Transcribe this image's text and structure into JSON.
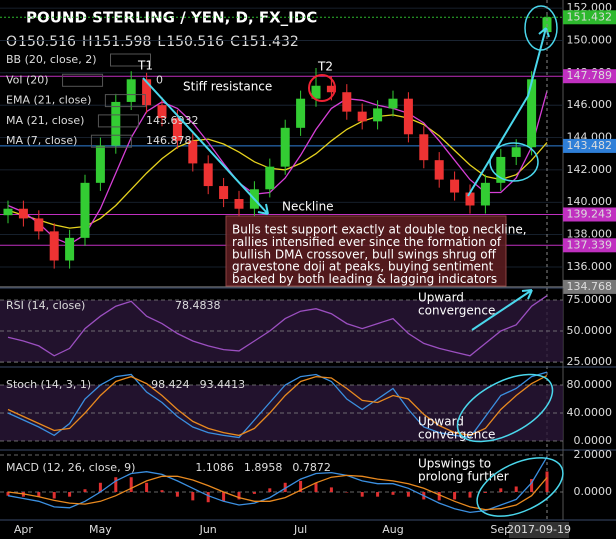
{
  "header": {
    "title": "POUND STERLING / YEN, D, FX_IDC",
    "ohlc_labels": [
      "O",
      "H",
      "L",
      "C"
    ]
  },
  "chart_data": [
    {
      "type": "candlestick",
      "categories": [
        null,
        "Apr",
        null,
        null,
        null,
        null,
        "May",
        null,
        null,
        null,
        null,
        null,
        null,
        "Jun",
        null,
        null,
        null,
        null,
        null,
        "Jul",
        null,
        null,
        null,
        null,
        null,
        "Aug",
        null,
        null,
        null,
        null,
        null,
        null,
        "Sep",
        null,
        null,
        "2017-09-19"
      ],
      "open": [
        139.2,
        139.6,
        139.0,
        138.2,
        136.4,
        137.8,
        141.2,
        143.5,
        146.2,
        147.6,
        146.0,
        145.2,
        143.8,
        142.4,
        141.0,
        140.2,
        139.6,
        140.8,
        142.2,
        144.6,
        146.4,
        147.2,
        146.8,
        145.6,
        145.0,
        145.8,
        146.4,
        144.2,
        142.6,
        141.4,
        140.6,
        139.8,
        141.2,
        142.8,
        143.4,
        150.516
      ],
      "high": [
        140.1,
        140.1,
        139.5,
        138.7,
        138.3,
        141.7,
        144.0,
        146.7,
        148.1,
        148.0,
        146.5,
        145.7,
        144.3,
        142.9,
        141.5,
        140.7,
        141.3,
        142.7,
        145.1,
        146.9,
        148.3,
        147.8,
        147.3,
        146.1,
        146.3,
        146.9,
        146.8,
        144.7,
        143.1,
        141.9,
        141.1,
        141.7,
        143.3,
        143.9,
        148.1,
        151.598
      ],
      "low": [
        138.7,
        138.5,
        137.7,
        135.9,
        135.9,
        137.3,
        140.7,
        143.0,
        145.7,
        145.5,
        144.7,
        143.3,
        141.9,
        140.5,
        139.7,
        139.1,
        139.1,
        140.3,
        141.7,
        144.1,
        145.9,
        146.3,
        145.1,
        144.5,
        144.5,
        145.3,
        143.7,
        142.1,
        140.9,
        140.1,
        139.3,
        139.3,
        140.7,
        142.3,
        142.9,
        150.516
      ],
      "close": [
        139.6,
        139.0,
        138.2,
        136.4,
        137.8,
        141.2,
        143.5,
        146.2,
        147.6,
        146.0,
        145.2,
        143.8,
        142.4,
        141.0,
        140.2,
        139.6,
        140.8,
        142.2,
        144.6,
        146.4,
        147.2,
        146.8,
        145.6,
        145.0,
        145.8,
        146.4,
        144.2,
        142.6,
        141.4,
        140.6,
        139.8,
        141.2,
        142.8,
        143.4,
        147.6,
        151.432
      ],
      "up_color": "#33cc33",
      "down_color": "#ee3333",
      "indicators": [
        "BB (20, close, 2)",
        "Vol (20)",
        "EMA (21, close)"
      ],
      "vol_value": 0,
      "series": [
        {
          "name": "MA (21, close)",
          "color": "#e6d21e",
          "values": [
            139.5,
            139.2,
            138.9,
            138.6,
            138.4,
            138.5,
            139.0,
            139.8,
            140.8,
            141.8,
            142.7,
            143.4,
            143.8,
            143.9,
            143.6,
            143.1,
            142.5,
            142.1,
            142.0,
            142.4,
            143.0,
            143.8,
            144.5,
            145.0,
            145.3,
            145.4,
            145.2,
            144.8,
            144.1,
            143.2,
            142.3,
            141.6,
            141.4,
            141.7,
            142.6,
            143.6932
          ]
        },
        {
          "name": "MA (7, close)",
          "color": "#d63fd6",
          "values": [
            139.8,
            139.4,
            138.7,
            137.8,
            137.4,
            138.0,
            139.6,
            141.8,
            144.0,
            145.6,
            146.2,
            145.8,
            144.9,
            143.7,
            142.4,
            141.2,
            140.5,
            140.6,
            141.5,
            142.9,
            144.5,
            145.8,
            146.4,
            146.3,
            146.0,
            145.8,
            145.5,
            144.9,
            143.8,
            142.6,
            141.4,
            140.6,
            140.6,
            141.5,
            143.4,
            146.878
          ]
        }
      ],
      "levels": [
        {
          "value": 151.432,
          "color": "#2db82d"
        },
        {
          "value": 147.789,
          "color": "#c030c0"
        },
        {
          "value": 143.482,
          "color": "#2f7fd8"
        },
        {
          "value": 139.243,
          "color": "#c030c0"
        },
        {
          "value": 137.339,
          "color": "#c030c0"
        },
        {
          "value": 134.768,
          "color": "#777777"
        }
      ],
      "ylim": [
        134.7,
        152.5
      ],
      "yticks": [
        {
          "value": 136,
          "label": "136.000"
        },
        {
          "value": 138,
          "label": "138.000"
        },
        {
          "value": 140,
          "label": "140.000"
        },
        {
          "value": 142,
          "label": "142.000"
        },
        {
          "value": 144,
          "label": "144.000"
        },
        {
          "value": 146,
          "label": "146.000"
        },
        {
          "value": 148,
          "label": "148.000"
        },
        {
          "value": 150,
          "label": "150.000"
        },
        {
          "value": 152,
          "label": "152.000"
        }
      ],
      "annotations": [
        "T1",
        "Stiff resistance",
        "T2",
        "Neckline"
      ],
      "note": [
        "Bulls test support exactly at double top neckline,",
        "rallies intensified ever since the formation of",
        "bullish DMA crossover, bull swings shrug off",
        "gravestone doji at peaks, buying sentiment",
        "backed by both leading & lagging indicators"
      ]
    },
    {
      "type": "line",
      "title": "RSI (14, close)",
      "series": [
        {
          "name": "RSI",
          "color": "#9b4fc0",
          "kind": "line",
          "values": [
            45,
            42,
            38,
            30,
            36,
            52,
            62,
            70,
            74,
            62,
            56,
            48,
            42,
            38,
            35,
            34,
            42,
            50,
            60,
            66,
            68,
            64,
            56,
            52,
            56,
            60,
            48,
            40,
            36,
            33,
            30,
            40,
            50,
            55,
            70,
            78.4838
          ]
        }
      ],
      "ylim": [
        21,
        84.7
      ],
      "yticks": [
        {
          "value": 25,
          "label": "25.0000"
        },
        {
          "value": 50,
          "label": "50.0000"
        },
        {
          "value": 75,
          "label": "75.0000"
        }
      ],
      "annotations": [
        "Upward",
        "convergence"
      ]
    },
    {
      "type": "line",
      "title": "Stoch (14, 3, 1)",
      "series": [
        {
          "name": "%K",
          "color": "#3b8fe0",
          "kind": "line",
          "values": [
            40,
            30,
            20,
            8,
            25,
            60,
            80,
            92,
            95,
            70,
            55,
            35,
            20,
            12,
            8,
            5,
            30,
            55,
            80,
            92,
            95,
            85,
            60,
            45,
            60,
            75,
            45,
            20,
            12,
            8,
            5,
            35,
            65,
            75,
            92,
            98.424
          ]
        },
        {
          "name": "%D",
          "color": "#e8891f",
          "kind": "line",
          "values": [
            45,
            35,
            25,
            15,
            18,
            40,
            65,
            85,
            92,
            82,
            65,
            45,
            28,
            18,
            12,
            8,
            18,
            40,
            65,
            85,
            92,
            90,
            75,
            58,
            55,
            65,
            60,
            38,
            22,
            12,
            8,
            18,
            45,
            65,
            82,
            93.4413
          ]
        }
      ],
      "ylim": [
        -12.9,
        105.7
      ],
      "yticks": [
        {
          "value": 0,
          "label": "0.0000"
        },
        {
          "value": 40,
          "label": "40.0000"
        },
        {
          "value": 80,
          "label": "80.0000"
        }
      ],
      "annotations": [
        "Upward",
        "convergence"
      ]
    },
    {
      "type": "combo",
      "title": "MACD (12, 26, close, 9)",
      "series": [
        {
          "name": "Histogram",
          "color": "#e03030",
          "kind": "bar",
          "values": [
            -0.2,
            -0.25,
            -0.25,
            -0.35,
            -0.25,
            0.15,
            0.5,
            0.8,
            0.8,
            0.5,
            0.1,
            -0.25,
            -0.45,
            -0.55,
            -0.5,
            -0.4,
            -0.1,
            0.2,
            0.5,
            0.6,
            0.5,
            0.25,
            0.0,
            -0.25,
            -0.25,
            -0.15,
            -0.25,
            -0.4,
            -0.45,
            -0.4,
            -0.3,
            -0.05,
            0.2,
            0.3,
            0.7,
            1.1086
          ]
        },
        {
          "name": "MACD",
          "color": "#3b8fe0",
          "kind": "line",
          "values": [
            -0.2,
            -0.35,
            -0.5,
            -0.8,
            -0.85,
            -0.5,
            0.0,
            0.6,
            1.0,
            1.1,
            0.95,
            0.6,
            0.2,
            -0.2,
            -0.5,
            -0.7,
            -0.6,
            -0.3,
            0.2,
            0.7,
            1.0,
            1.05,
            0.9,
            0.6,
            0.45,
            0.45,
            0.2,
            -0.2,
            -0.6,
            -0.9,
            -1.1,
            -1.0,
            -0.7,
            -0.4,
            0.5,
            1.8958
          ]
        },
        {
          "name": "Signal",
          "color": "#e8891f",
          "kind": "line",
          "values": [
            0.0,
            -0.1,
            -0.25,
            -0.45,
            -0.6,
            -0.65,
            -0.5,
            -0.2,
            0.2,
            0.6,
            0.85,
            0.85,
            0.65,
            0.35,
            0.0,
            -0.3,
            -0.5,
            -0.5,
            -0.3,
            0.1,
            0.5,
            0.8,
            0.9,
            0.85,
            0.7,
            0.6,
            0.45,
            0.2,
            -0.15,
            -0.5,
            -0.8,
            -0.95,
            -0.9,
            -0.7,
            -0.2,
            0.7872
          ]
        }
      ],
      "ylim": [
        -1.51,
        2.27
      ],
      "yticks": [
        {
          "value": 0,
          "label": "0.0000"
        },
        {
          "value": 2,
          "label": "2.0000"
        }
      ],
      "annotations": [
        "Upswings to",
        "prolong further"
      ]
    }
  ]
}
